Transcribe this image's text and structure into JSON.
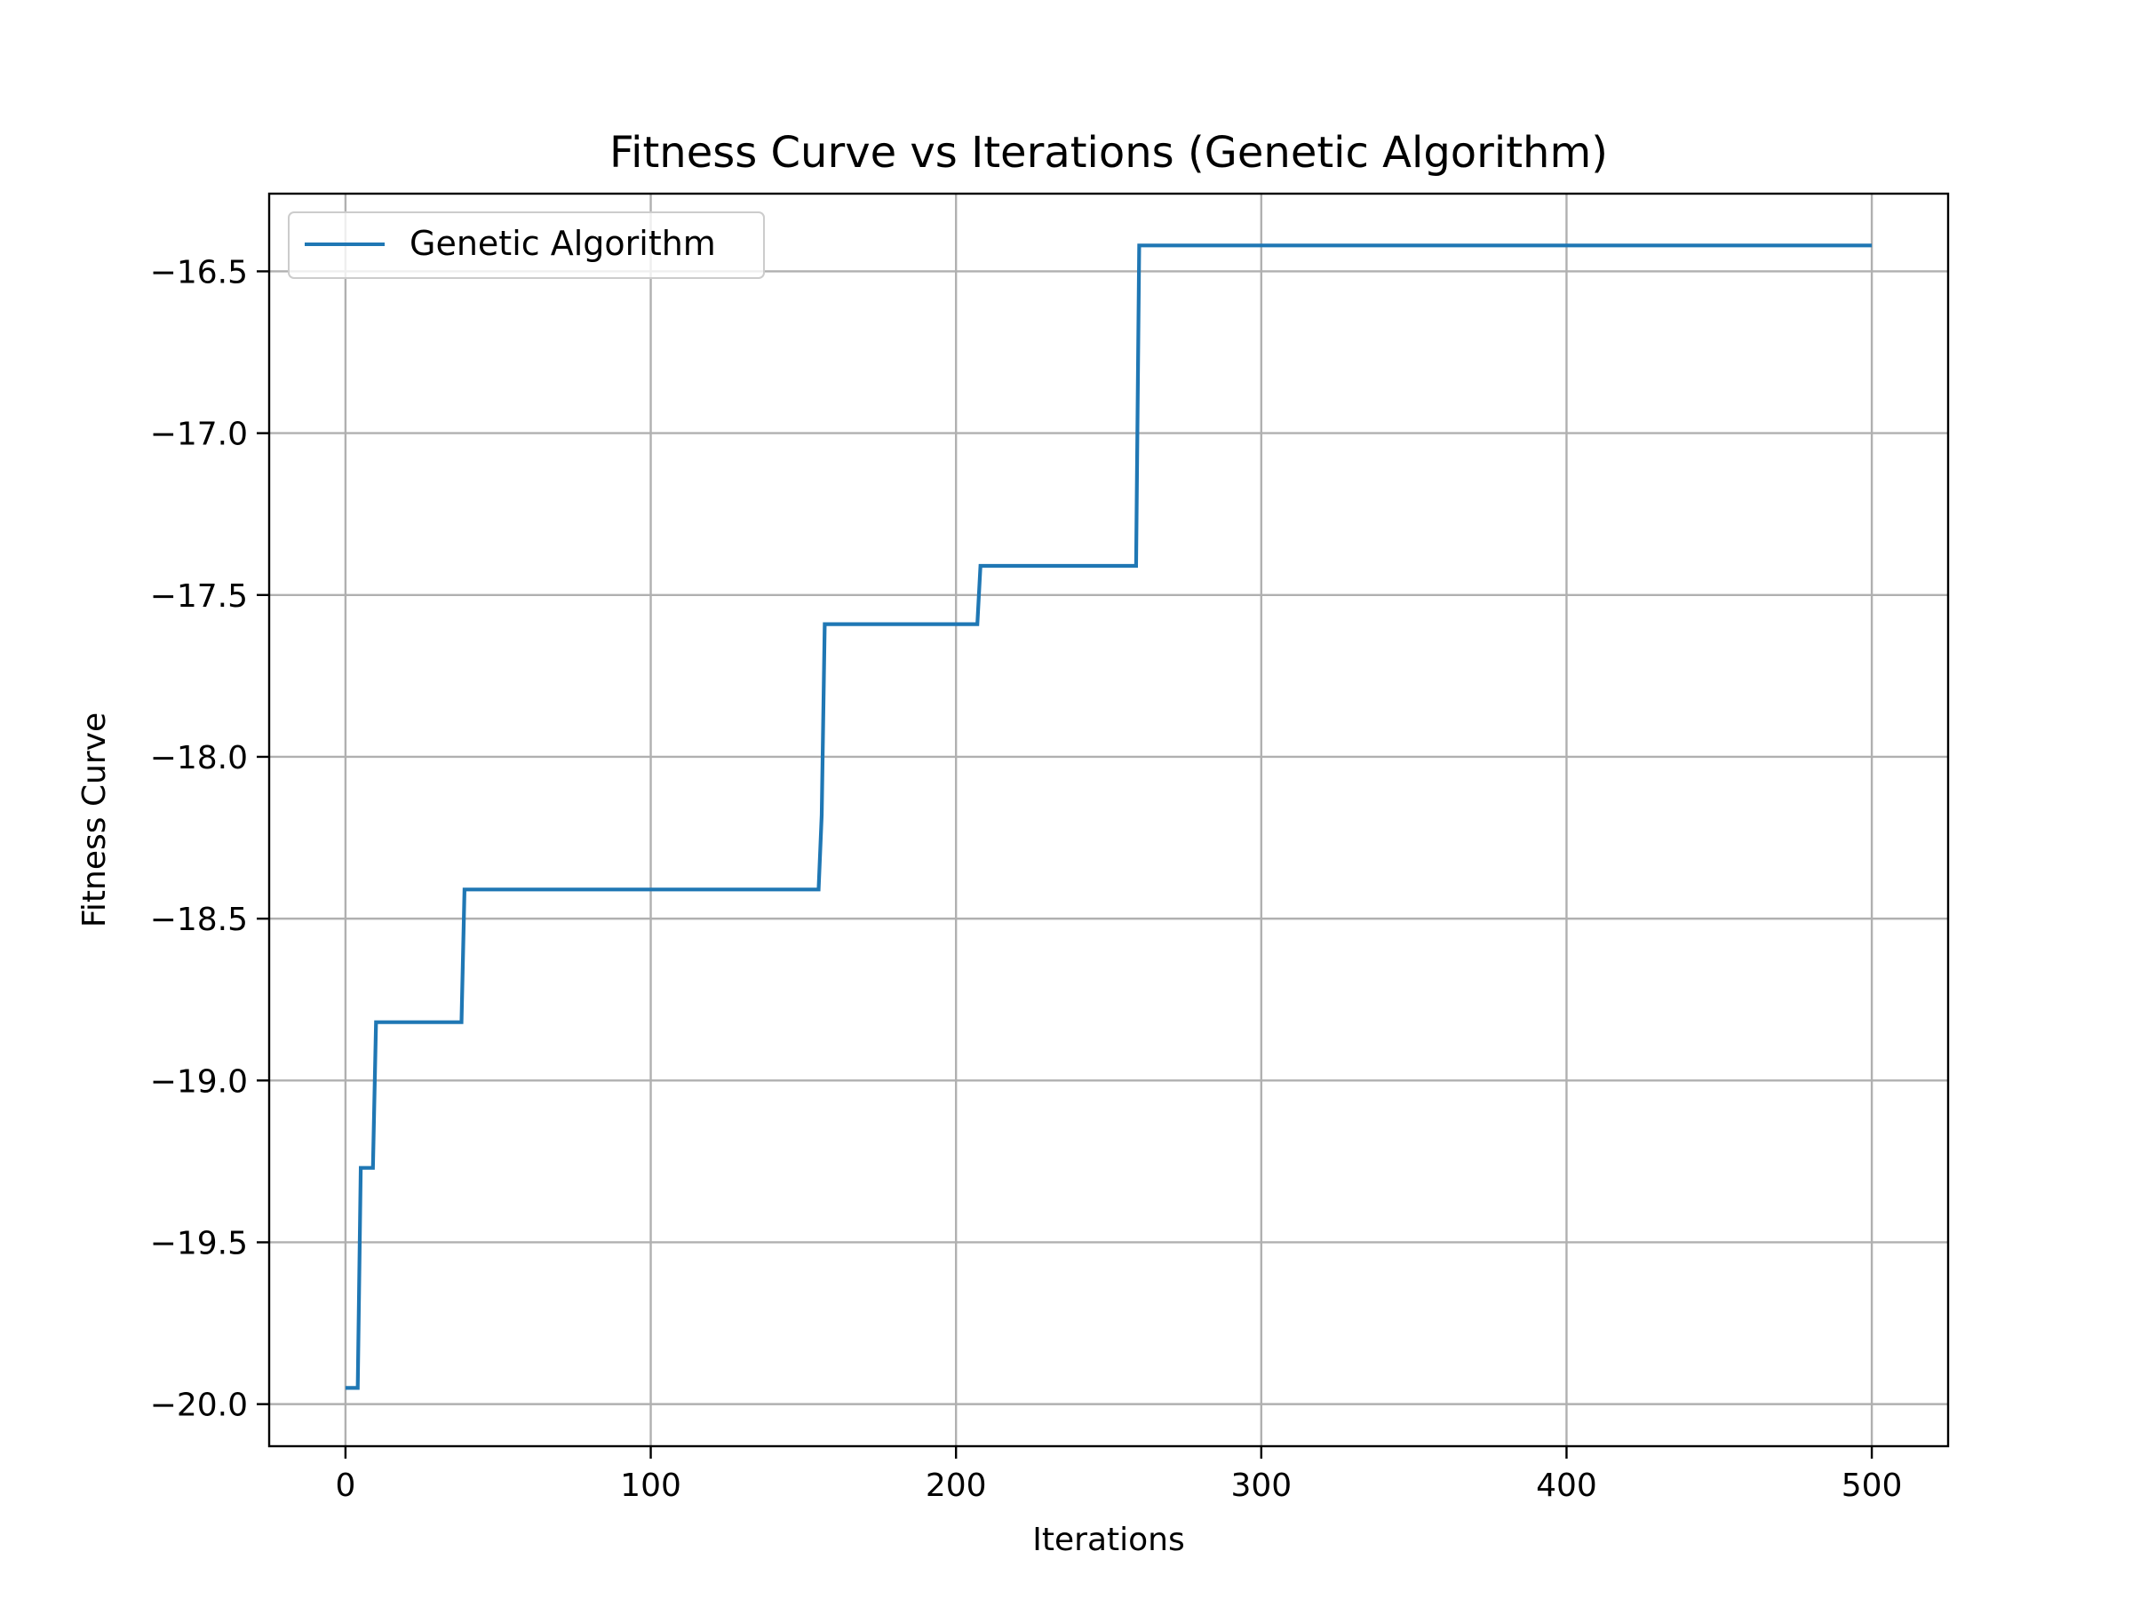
{
  "chart_data": {
    "type": "line",
    "title": "Fitness Curve vs Iterations (Genetic Algorithm)",
    "xlabel": "Iterations",
    "ylabel": "Fitness Curve",
    "xlim": [
      -25,
      525
    ],
    "ylim": [
      -20.13,
      -16.26
    ],
    "xticks": [
      0,
      100,
      200,
      300,
      400,
      500
    ],
    "xtick_labels": [
      "0",
      "100",
      "200",
      "300",
      "400",
      "500"
    ],
    "yticks": [
      -20.0,
      -19.5,
      -19.0,
      -18.5,
      -18.0,
      -17.5,
      -17.0,
      -16.5
    ],
    "ytick_labels": [
      "−20.0",
      "−19.5",
      "−19.0",
      "−18.5",
      "−18.0",
      "−17.5",
      "−17.0",
      "−16.5"
    ],
    "grid": true,
    "legend_position": "top-left",
    "series": [
      {
        "name": "Genetic Algorithm",
        "color": "#1f77b4",
        "x": [
          0,
          4,
          5,
          9,
          10,
          38,
          39,
          155,
          156,
          157,
          207,
          208,
          259,
          260,
          500
        ],
        "y": [
          -19.95,
          -19.95,
          -19.27,
          -19.27,
          -18.82,
          -18.82,
          -18.41,
          -18.41,
          -18.18,
          -17.59,
          -17.59,
          -17.41,
          -17.41,
          -16.42,
          -16.42
        ]
      }
    ]
  }
}
